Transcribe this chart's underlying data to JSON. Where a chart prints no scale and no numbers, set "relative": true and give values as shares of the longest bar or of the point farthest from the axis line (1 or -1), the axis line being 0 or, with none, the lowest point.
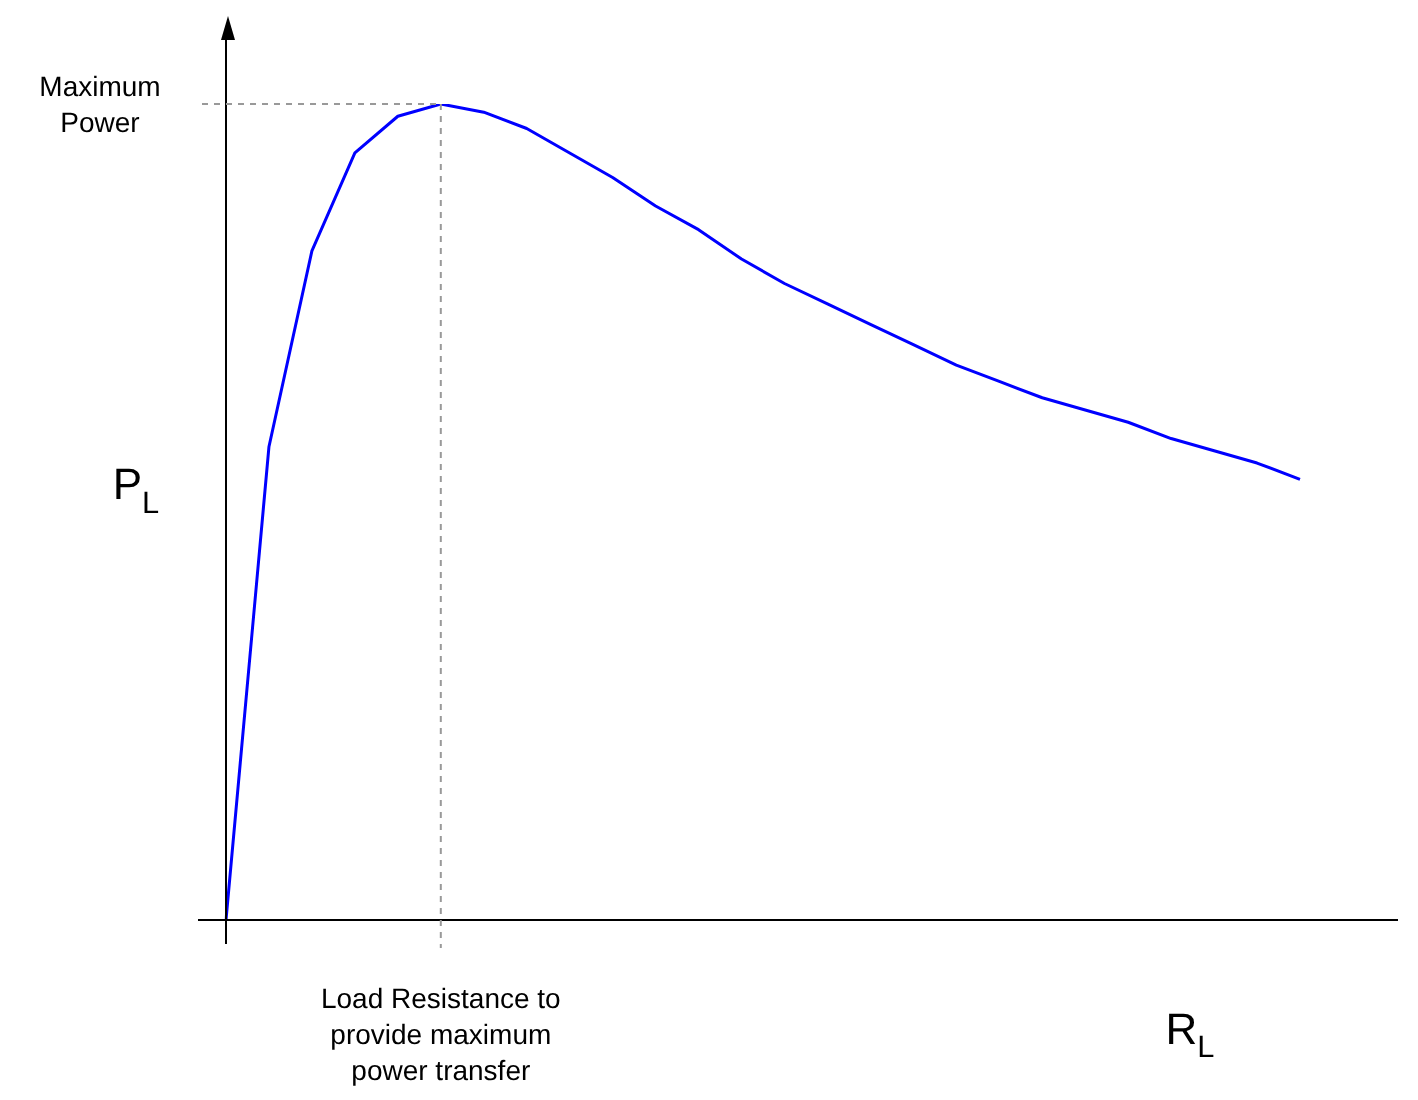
{
  "chart_data": {
    "type": "line",
    "relative": true,
    "ylabel": "P$_{L}$",
    "xlabel": "R$_{L}$",
    "categories": [
      null,
      null,
      null,
      null,
      null,
      null,
      null,
      null,
      null,
      null,
      null,
      null,
      null,
      null,
      null,
      null,
      null,
      null,
      null,
      null,
      null,
      null,
      null,
      null,
      null,
      null
    ],
    "series": [
      {
        "color": "#0000ff",
        "values": [
          0,
          0.58,
          0.82,
          0.94,
          0.985,
          1,
          0.99,
          0.97,
          0.94,
          0.91,
          0.875,
          0.846,
          0.81,
          0.78,
          0.755,
          0.73,
          0.705,
          0.68,
          0.66,
          0.64,
          0.625,
          0.61,
          0.59,
          0.575,
          0.56,
          0.54
        ]
      }
    ],
    "marker": "none",
    "line_style": "solid",
    "legend": false,
    "annotations": [
      "Maximum Power",
      "Load Resistance to provide maximum power transfer"
    ]
  }
}
